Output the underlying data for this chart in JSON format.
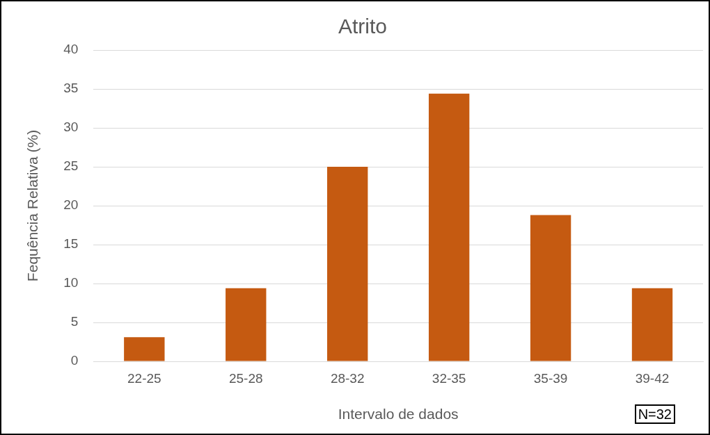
{
  "chart_data": {
    "type": "bar",
    "title": "Atrito",
    "xlabel": "Intervalo de dados",
    "ylabel": "Fequência Relativa (%)",
    "categories": [
      "22-25",
      "25-28",
      "28-32",
      "32-35",
      "35-39",
      "39-42"
    ],
    "values": [
      3.1,
      9.4,
      25,
      34.4,
      18.8,
      9.4
    ],
    "color": "#c55a11",
    "ylim": [
      0,
      40
    ],
    "yticks": [
      0,
      5,
      10,
      15,
      20,
      25,
      30,
      35,
      40
    ],
    "grid": "y",
    "annotations": [
      "N=32"
    ]
  }
}
